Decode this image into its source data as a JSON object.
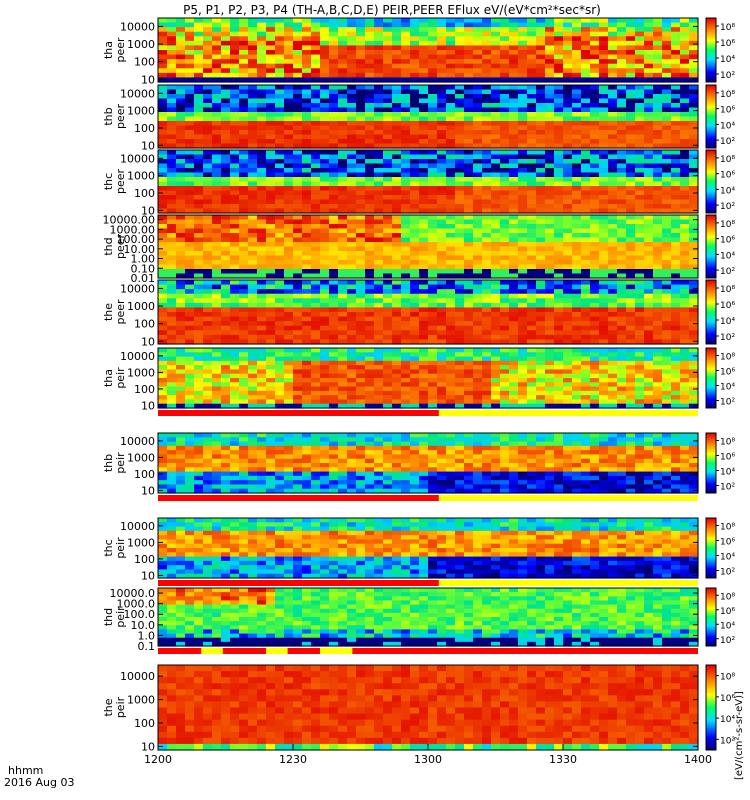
{
  "title": "P5, P1, P2, P3, P4 (TH-A,B,C,D,E) PEIR,PEER EFlux eV/(eV*cm²*sec*sr)",
  "footer": {
    "line1": "hhmm",
    "line2": "2016 Aug 03"
  },
  "colorbar_label": "[eV/(cm²-s-sr-eV)]",
  "colors": {
    "low": "#000080",
    "mid": "#00c0a0",
    "high": "#e00000",
    "flag_red": "#ff0000",
    "flag_yellow": "#ffff00"
  },
  "chart_data": {
    "type": "heatmap",
    "x_ticks": [
      "1200",
      "1230",
      "1300",
      "1330",
      "1400"
    ],
    "x_range": [
      "1200",
      "1400"
    ],
    "colorbar_ticks": [
      "10²",
      "10⁴",
      "10⁶",
      "10⁸"
    ],
    "panels": [
      {
        "name": "tha peer",
        "label1": "tha",
        "label2": "peer",
        "yticks": [
          "10000",
          "1000",
          "100",
          "10"
        ],
        "ylim": [
          7,
          30000
        ],
        "log": true,
        "style": "a_peer",
        "flag": false
      },
      {
        "name": "thb peer",
        "label1": "thb",
        "label2": "peer",
        "yticks": [
          "10000",
          "1000",
          "100",
          "10"
        ],
        "ylim": [
          7,
          30000
        ],
        "log": true,
        "style": "bc_peer",
        "flag": false
      },
      {
        "name": "thc peer",
        "label1": "thc",
        "label2": "peer",
        "yticks": [
          "10000",
          "1000",
          "100",
          "10"
        ],
        "ylim": [
          7,
          30000
        ],
        "log": true,
        "style": "bc_peer",
        "flag": false
      },
      {
        "name": "thd peer",
        "label1": "thd",
        "label2": "peer",
        "yticks": [
          "10000.00",
          "1000.00",
          "100.00",
          "10.00",
          "1.00",
          "0.10",
          "0.01"
        ],
        "ylim": [
          0.01,
          30000
        ],
        "log": true,
        "style": "d_peer",
        "flag": false
      },
      {
        "name": "the peer",
        "label1": "the",
        "label2": "peer",
        "yticks": [
          "10000",
          "1000",
          "100",
          "10"
        ],
        "ylim": [
          7,
          30000
        ],
        "log": true,
        "style": "e_peer",
        "flag": false
      },
      {
        "name": "tha peir",
        "label1": "tha",
        "label2": "peir",
        "yticks": [
          "10000",
          "1000",
          "100",
          "10"
        ],
        "ylim": [
          7,
          30000
        ],
        "log": true,
        "style": "a_peir",
        "flag": true
      },
      {
        "name": "thb peir",
        "label1": "thb",
        "label2": "peir",
        "yticks": [
          "10000",
          "1000",
          "100",
          "10"
        ],
        "ylim": [
          7,
          30000
        ],
        "log": true,
        "style": "bc_peir",
        "flag": true
      },
      {
        "name": "thc peir",
        "label1": "thc",
        "label2": "peir",
        "yticks": [
          "10000",
          "1000",
          "100",
          "10"
        ],
        "ylim": [
          7,
          30000
        ],
        "log": true,
        "style": "bc_peir",
        "flag": true
      },
      {
        "name": "thd peir",
        "label1": "thd",
        "label2": "peir",
        "yticks": [
          "10000.0",
          "1000.0",
          "100.0",
          "10.0",
          "1.0",
          "0.1"
        ],
        "ylim": [
          0.1,
          30000
        ],
        "log": true,
        "style": "d_peir",
        "flag": true
      },
      {
        "name": "the peir",
        "label1": "the",
        "label2": "peir",
        "yticks": [
          "10000",
          "1000",
          "100",
          "10"
        ],
        "ylim": [
          7,
          30000
        ],
        "log": true,
        "style": "e_peir",
        "flag": false
      }
    ]
  }
}
